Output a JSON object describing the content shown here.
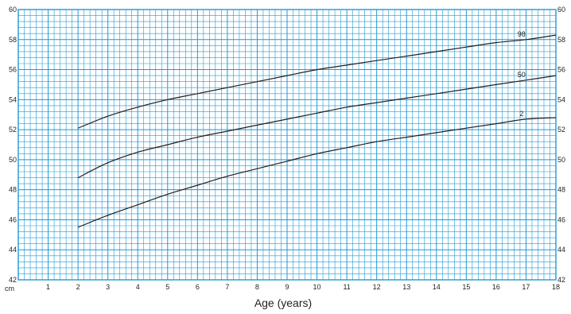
{
  "chart_data": {
    "type": "line",
    "title": "",
    "xlabel": "Age (years)",
    "ylabel": "",
    "y_unit_label": "cm",
    "xlim": [
      0,
      18
    ],
    "ylim": [
      42,
      60
    ],
    "x_ticks": [
      1,
      2,
      3,
      4,
      5,
      6,
      7,
      8,
      9,
      10,
      11,
      12,
      13,
      14,
      15,
      16,
      17,
      18
    ],
    "y_ticks": [
      42,
      44,
      46,
      48,
      50,
      52,
      54,
      56,
      58,
      60
    ],
    "grid": true,
    "grid_color": "#1e9ad6",
    "line_color": "#231f20",
    "series": [
      {
        "name": "98",
        "x": [
          2,
          3,
          4,
          5,
          6,
          7,
          8,
          9,
          10,
          11,
          12,
          13,
          14,
          15,
          16,
          17,
          18
        ],
        "y": [
          52.1,
          52.9,
          53.5,
          54.0,
          54.4,
          54.8,
          55.2,
          55.6,
          56.0,
          56.3,
          56.6,
          56.9,
          57.2,
          57.5,
          57.8,
          58.0,
          58.3
        ]
      },
      {
        "name": "50",
        "x": [
          2,
          3,
          4,
          5,
          6,
          7,
          8,
          9,
          10,
          11,
          12,
          13,
          14,
          15,
          16,
          17,
          18
        ],
        "y": [
          48.8,
          49.8,
          50.5,
          51.0,
          51.5,
          51.9,
          52.3,
          52.7,
          53.1,
          53.5,
          53.8,
          54.1,
          54.4,
          54.7,
          55.0,
          55.3,
          55.6
        ]
      },
      {
        "name": "2",
        "x": [
          2,
          3,
          4,
          5,
          6,
          7,
          8,
          9,
          10,
          11,
          12,
          13,
          14,
          15,
          16,
          17,
          18
        ],
        "y": [
          45.5,
          46.3,
          47.0,
          47.7,
          48.3,
          48.9,
          49.4,
          49.9,
          50.4,
          50.8,
          51.2,
          51.5,
          51.8,
          52.1,
          52.4,
          52.7,
          52.8
        ]
      }
    ]
  }
}
